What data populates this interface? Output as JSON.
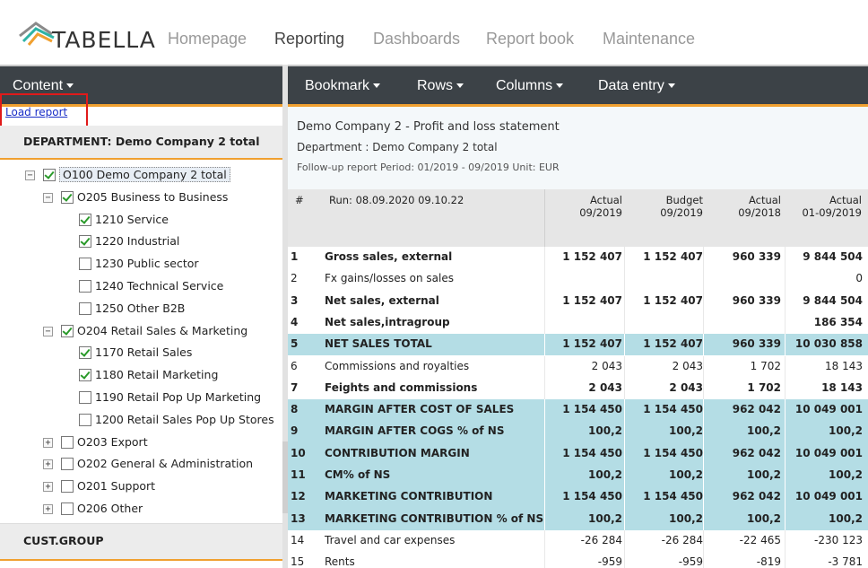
{
  "app": {
    "brand": "TABELLA",
    "nav": [
      "Homepage",
      "Reporting",
      "Dashboards",
      "Report book",
      "Maintenance"
    ],
    "active_nav": "Reporting"
  },
  "left": {
    "content_menu": "Content",
    "load_report": "Load report",
    "dimension1": "DEPARTMENT: Demo Company 2 total",
    "dimension2": "CUST.GROUP",
    "tree": [
      {
        "label": "O100 Demo Company 2 total",
        "checked": true,
        "expander": "minus"
      },
      {
        "label": "O205 Business to Business",
        "checked": true,
        "expander": "minus"
      },
      {
        "label": "1210 Service",
        "checked": true,
        "expander": ""
      },
      {
        "label": "1220 Industrial",
        "checked": true,
        "expander": ""
      },
      {
        "label": "1230 Public sector",
        "checked": false,
        "expander": ""
      },
      {
        "label": "1240 Technical Service",
        "checked": false,
        "expander": ""
      },
      {
        "label": "1250 Other B2B",
        "checked": false,
        "expander": ""
      },
      {
        "label": "O204 Retail Sales & Marketing",
        "checked": true,
        "expander": "minus"
      },
      {
        "label": "1170 Retail Sales",
        "checked": true,
        "expander": ""
      },
      {
        "label": "1180 Retail Marketing",
        "checked": true,
        "expander": ""
      },
      {
        "label": "1190 Retail Pop Up Marketing",
        "checked": false,
        "expander": ""
      },
      {
        "label": "1200 Retail Sales Pop Up Stores",
        "checked": false,
        "expander": ""
      },
      {
        "label": "O203 Export",
        "checked": false,
        "expander": "plus"
      },
      {
        "label": "O202 General & Administration",
        "checked": false,
        "expander": "plus"
      },
      {
        "label": "O201 Support",
        "checked": false,
        "expander": "plus"
      },
      {
        "label": "O206 Other",
        "checked": false,
        "expander": "plus"
      }
    ]
  },
  "right": {
    "menus": [
      "Bookmark",
      "Rows",
      "Columns",
      "Data entry"
    ],
    "report_title": "Demo Company 2 - Profit and loss statement",
    "report_dept": "Department : Demo Company 2 total",
    "report_followup": "Follow-up report Period: 01/2019 - 09/2019 Unit: EUR",
    "hash": "#",
    "run": "Run: 08.09.2020 09.10.22",
    "columns": [
      {
        "line1": "Actual",
        "line2": "09/2019"
      },
      {
        "line1": "Budget",
        "line2": "09/2019"
      },
      {
        "line1": "Actual",
        "line2": "09/2018"
      },
      {
        "line1": "Actual",
        "line2": "01-09/2019"
      }
    ],
    "rows": [
      {
        "n": "1",
        "label": "Gross sales, external",
        "v": [
          "1 152 407",
          "1 152 407",
          "960 339",
          "9 844 504"
        ],
        "bold": true,
        "hl": false
      },
      {
        "n": "2",
        "label": "Fx gains/losses on sales",
        "v": [
          "",
          "",
          "",
          "0"
        ],
        "bold": false,
        "hl": false
      },
      {
        "n": "3",
        "label": "Net sales, external",
        "v": [
          "1 152 407",
          "1 152 407",
          "960 339",
          "9 844 504"
        ],
        "bold": true,
        "hl": false
      },
      {
        "n": "4",
        "label": "Net sales,intragroup",
        "v": [
          "",
          "",
          "",
          "186 354"
        ],
        "bold": true,
        "hl": false
      },
      {
        "n": "5",
        "label": "NET SALES TOTAL",
        "v": [
          "1 152 407",
          "1 152 407",
          "960 339",
          "10 030 858"
        ],
        "bold": true,
        "hl": true
      },
      {
        "n": "6",
        "label": "Commissions and royalties",
        "v": [
          "2 043",
          "2 043",
          "1 702",
          "18 143"
        ],
        "bold": false,
        "hl": false
      },
      {
        "n": "7",
        "label": "Feights and commissions",
        "v": [
          "2 043",
          "2 043",
          "1 702",
          "18 143"
        ],
        "bold": true,
        "hl": false
      },
      {
        "n": "8",
        "label": "MARGIN AFTER COST OF SALES",
        "v": [
          "1 154 450",
          "1 154 450",
          "962 042",
          "10 049 001"
        ],
        "bold": true,
        "hl": true
      },
      {
        "n": "9",
        "label": "MARGIN AFTER COGS % of NS",
        "v": [
          "100,2",
          "100,2",
          "100,2",
          "100,2"
        ],
        "bold": true,
        "hl": true
      },
      {
        "n": "10",
        "label": "CONTRIBUTION MARGIN",
        "v": [
          "1 154 450",
          "1 154 450",
          "962 042",
          "10 049 001"
        ],
        "bold": true,
        "hl": true
      },
      {
        "n": "11",
        "label": "CM% of NS",
        "v": [
          "100,2",
          "100,2",
          "100,2",
          "100,2"
        ],
        "bold": true,
        "hl": true
      },
      {
        "n": "12",
        "label": "MARKETING CONTRIBUTION",
        "v": [
          "1 154 450",
          "1 154 450",
          "962 042",
          "10 049 001"
        ],
        "bold": true,
        "hl": true
      },
      {
        "n": "13",
        "label": "MARKETING CONTRIBUTION % of NS",
        "v": [
          "100,2",
          "100,2",
          "100,2",
          "100,2"
        ],
        "bold": true,
        "hl": true
      },
      {
        "n": "14",
        "label": "Travel and car expenses",
        "v": [
          "-26 284",
          "-26 284",
          "-22 465",
          "-230 123"
        ],
        "bold": false,
        "hl": false
      },
      {
        "n": "15",
        "label": "Rents",
        "v": [
          "-959",
          "-959",
          "-819",
          "-3 781"
        ],
        "bold": false,
        "hl": false
      }
    ]
  },
  "colors": {
    "dark_bar": "#3c4247",
    "accent_orange": "#f0a030",
    "highlight_row": "#b4dde5",
    "link_blue": "#1a2ec8",
    "annotation_red": "#e01a1a"
  }
}
